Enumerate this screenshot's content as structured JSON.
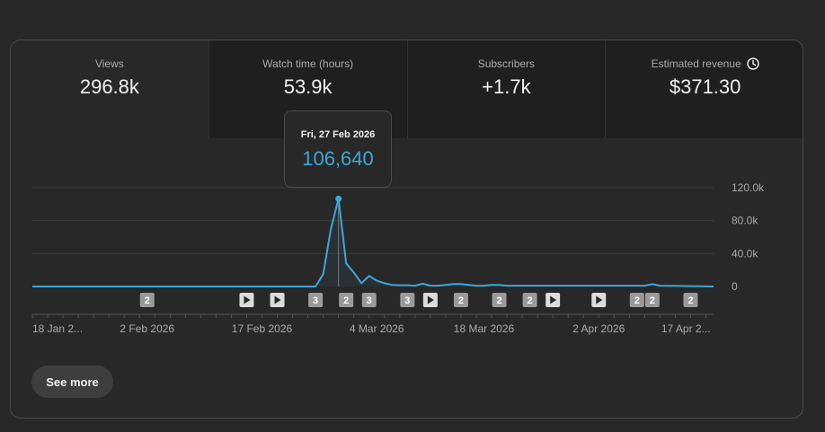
{
  "tabs": [
    {
      "label": "Views",
      "value": "296.8k",
      "active": true
    },
    {
      "label": "Watch time (hours)",
      "value": "53.9k",
      "active": false
    },
    {
      "label": "Subscribers",
      "value": "+1.7k",
      "active": false
    },
    {
      "label": "Estimated revenue",
      "value": "$371.30",
      "active": false,
      "icon": "clock-icon"
    }
  ],
  "tooltip": {
    "date": "Fri, 27 Feb 2026",
    "value": "106,640"
  },
  "see_more_label": "See more",
  "colors": {
    "line": "#3ea6d8",
    "background": "#282828",
    "grid": "#3a3a3a"
  },
  "chart_data": {
    "type": "line",
    "y_ticks": [
      {
        "value": 120000,
        "label": "120.0k"
      },
      {
        "value": 80000,
        "label": "80.0k"
      },
      {
        "value": 40000,
        "label": "40.0k"
      },
      {
        "value": 0,
        "label": "0"
      }
    ],
    "ylim": [
      0,
      120000
    ],
    "x_tick_labels": [
      "18 Jan 2...",
      "2 Feb 2026",
      "17 Feb 2026",
      "4 Mar 2026",
      "18 Mar 2026",
      "2 Apr 2026",
      "17 Apr 2..."
    ],
    "series": [
      {
        "values": [
          {
            "x": 0,
            "y": 0
          },
          {
            "x": 37,
            "y": 0
          },
          {
            "x": 38,
            "y": 15000
          },
          {
            "x": 39,
            "y": 70000
          },
          {
            "x": 40,
            "y": 106640
          },
          {
            "x": 41,
            "y": 28000
          },
          {
            "x": 42,
            "y": 17000
          },
          {
            "x": 43,
            "y": 4000
          },
          {
            "x": 44,
            "y": 13000
          },
          {
            "x": 45,
            "y": 7000
          },
          {
            "x": 46,
            "y": 4000
          },
          {
            "x": 47,
            "y": 2000
          },
          {
            "x": 48,
            "y": 1500
          },
          {
            "x": 49,
            "y": 1500
          },
          {
            "x": 50,
            "y": 1000
          },
          {
            "x": 51,
            "y": 3500
          },
          {
            "x": 52,
            "y": 1000
          },
          {
            "x": 53,
            "y": 1000
          },
          {
            "x": 54,
            "y": 2000
          },
          {
            "x": 55,
            "y": 3000
          },
          {
            "x": 56,
            "y": 3000
          },
          {
            "x": 57,
            "y": 2000
          },
          {
            "x": 58,
            "y": 1000
          },
          {
            "x": 59,
            "y": 1000
          },
          {
            "x": 60,
            "y": 2000
          },
          {
            "x": 61,
            "y": 2000
          },
          {
            "x": 62,
            "y": 1000
          },
          {
            "x": 63,
            "y": 1000
          },
          {
            "x": 80,
            "y": 1000
          },
          {
            "x": 81,
            "y": 3000
          },
          {
            "x": 82,
            "y": 1000
          },
          {
            "x": 89,
            "y": 0
          }
        ]
      }
    ],
    "markers": [
      {
        "x": 15,
        "type": "badge",
        "label": "2"
      },
      {
        "x": 28,
        "type": "play"
      },
      {
        "x": 32,
        "type": "play"
      },
      {
        "x": 37,
        "type": "badge",
        "label": "3"
      },
      {
        "x": 41,
        "type": "badge",
        "label": "2"
      },
      {
        "x": 44,
        "type": "badge",
        "label": "3"
      },
      {
        "x": 49,
        "type": "badge",
        "label": "3"
      },
      {
        "x": 52,
        "type": "play"
      },
      {
        "x": 56,
        "type": "badge",
        "label": "2"
      },
      {
        "x": 61,
        "type": "badge",
        "label": "2"
      },
      {
        "x": 65,
        "type": "badge",
        "label": "2"
      },
      {
        "x": 68,
        "type": "play"
      },
      {
        "x": 74,
        "type": "play"
      },
      {
        "x": 79,
        "type": "badge",
        "label": "2"
      },
      {
        "x": 81,
        "type": "badge",
        "label": "2"
      },
      {
        "x": 86,
        "type": "badge",
        "label": "2"
      }
    ],
    "highlight_x": 40
  }
}
